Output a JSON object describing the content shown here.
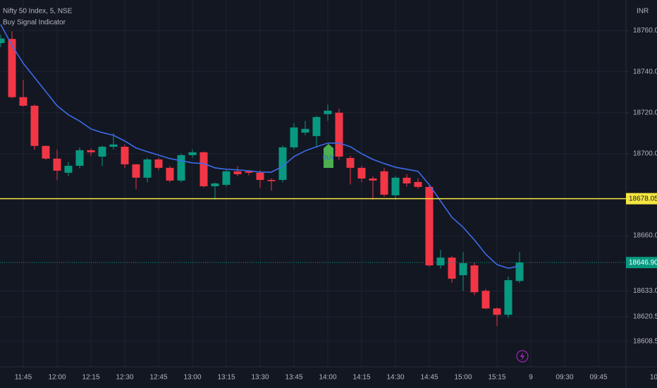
{
  "chart_data": {
    "type": "candlestick",
    "title": "Nifty 50 Index, 5, NSE",
    "subtitle": "Buy Signal Indicator",
    "currency": "INR",
    "open": [
      18754,
      18756,
      18727.6,
      18723.4,
      18703.8,
      18697.6,
      18690.7,
      18694.1,
      18701.7,
      18698.6,
      18703.4,
      18703.4,
      18694.8,
      18688.3,
      18697.2,
      18693.1,
      18686.9,
      18699.3,
      18700.7,
      18684.1,
      18684.8,
      18691.4,
      18691.4,
      18690.7,
      18687.2,
      18687.2,
      18703.1,
      18710.3,
      18708.6,
      18719.3,
      18720,
      18697.9,
      18693.1,
      18687.9,
      18691.4,
      18679.7,
      18688.3,
      18686.2,
      18683.8,
      18645.5,
      18649.3,
      18640.7,
      18645.5,
      18633.1,
      18624.5,
      18621.4,
      18637.9
    ],
    "high": [
      18758,
      18759.7,
      18736,
      18724,
      18704,
      18702,
      18696,
      18703,
      18702.5,
      18704,
      18710,
      18704.5,
      18695,
      18698,
      18698,
      18694,
      18700,
      18702,
      18701,
      18686,
      18692,
      18694,
      18692,
      18692,
      18688,
      18704,
      18715,
      18716,
      18718.5,
      18724,
      18722,
      18699,
      18694,
      18689,
      18693,
      18689,
      18690,
      18688,
      18684.5,
      18653,
      18650,
      18652,
      18647,
      18634,
      18625,
      18640,
      18652
    ],
    "low": [
      18752,
      18727,
      18723,
      18702,
      18697,
      18687.2,
      18689,
      18693,
      18699,
      18694,
      18702,
      18693,
      18682.8,
      18686,
      18692,
      18686,
      18686,
      18698,
      18683.5,
      18677.6,
      18684,
      18689,
      18689.5,
      18683.4,
      18682,
      18686,
      18702,
      18709,
      18703,
      18716,
      18697,
      18685,
      18686,
      18677.6,
      18679,
      18677.6,
      18684,
      18683,
      18645,
      18644,
      18637,
      18633,
      18631,
      18624,
      18615.9,
      18620,
      18637
    ],
    "close": [
      18756.2,
      18727.6,
      18723.4,
      18703.8,
      18697.6,
      18691.7,
      18694.1,
      18701.7,
      18700.7,
      18703.4,
      18704.5,
      18694.8,
      18688.3,
      18697.2,
      18693.1,
      18686.9,
      18699.3,
      18700.7,
      18684.1,
      18685.5,
      18691.4,
      18690,
      18690.7,
      18687.2,
      18686.6,
      18703.1,
      18712.8,
      18712.1,
      18717.9,
      18721,
      18698.6,
      18693.1,
      18687.9,
      18686.9,
      18680,
      18688.3,
      18685.5,
      18683.8,
      18645.5,
      18649.3,
      18639,
      18646.6,
      18632.4,
      18624.5,
      18621.4,
      18638.3,
      18646.9
    ],
    "ma": {
      "color": "#3d6be8",
      "values": [
        18763.1,
        18752.8,
        18744.1,
        18737.2,
        18730.3,
        18723.4,
        18719,
        18715.9,
        18712.1,
        18710.3,
        18709,
        18706.2,
        18702.8,
        18701,
        18699.3,
        18697.6,
        18696.6,
        18695.5,
        18695.2,
        18693.1,
        18692.4,
        18692.1,
        18691.7,
        18691,
        18691,
        18693.8,
        18698.6,
        18701.4,
        18703.4,
        18705.2,
        18705.2,
        18703.4,
        18700,
        18697.2,
        18695.2,
        18693.4,
        18692.4,
        18691.4,
        18684.8,
        18676.9,
        18669,
        18664.1,
        18657.9,
        18651,
        18645.9,
        18644.1,
        18645.2
      ]
    },
    "up_color": "#089981",
    "down_color": "#f23645",
    "xtick_labels": [
      "11:45",
      "12:00",
      "12:15",
      "12:30",
      "12:45",
      "13:00",
      "13:15",
      "13:30",
      "13:45",
      "14:00",
      "14:15",
      "14:30",
      "14:45",
      "15:00",
      "15:15",
      "9",
      "09:30",
      "09:45",
      "10"
    ],
    "ylim": [
      18596,
      18775
    ],
    "yticks": [
      {
        "value": 18760,
        "label": "18760.00"
      },
      {
        "value": 18740,
        "label": "18740.00"
      },
      {
        "value": 18720,
        "label": "18720.00"
      },
      {
        "value": 18700,
        "label": "18700.00"
      },
      {
        "value": 18660,
        "label": "18660.00"
      },
      {
        "value": 18633,
        "label": "18633.00"
      },
      {
        "value": 18620.5,
        "label": "18620.50"
      },
      {
        "value": 18608.5,
        "label": "18608.50"
      }
    ],
    "hline": {
      "value": 18678.05,
      "label": "18678.05",
      "color": "#f5e642"
    },
    "last_price": {
      "value": 18646.9,
      "label": "18646.90",
      "color": "#089981"
    },
    "signal": "BUY",
    "grid": true
  }
}
